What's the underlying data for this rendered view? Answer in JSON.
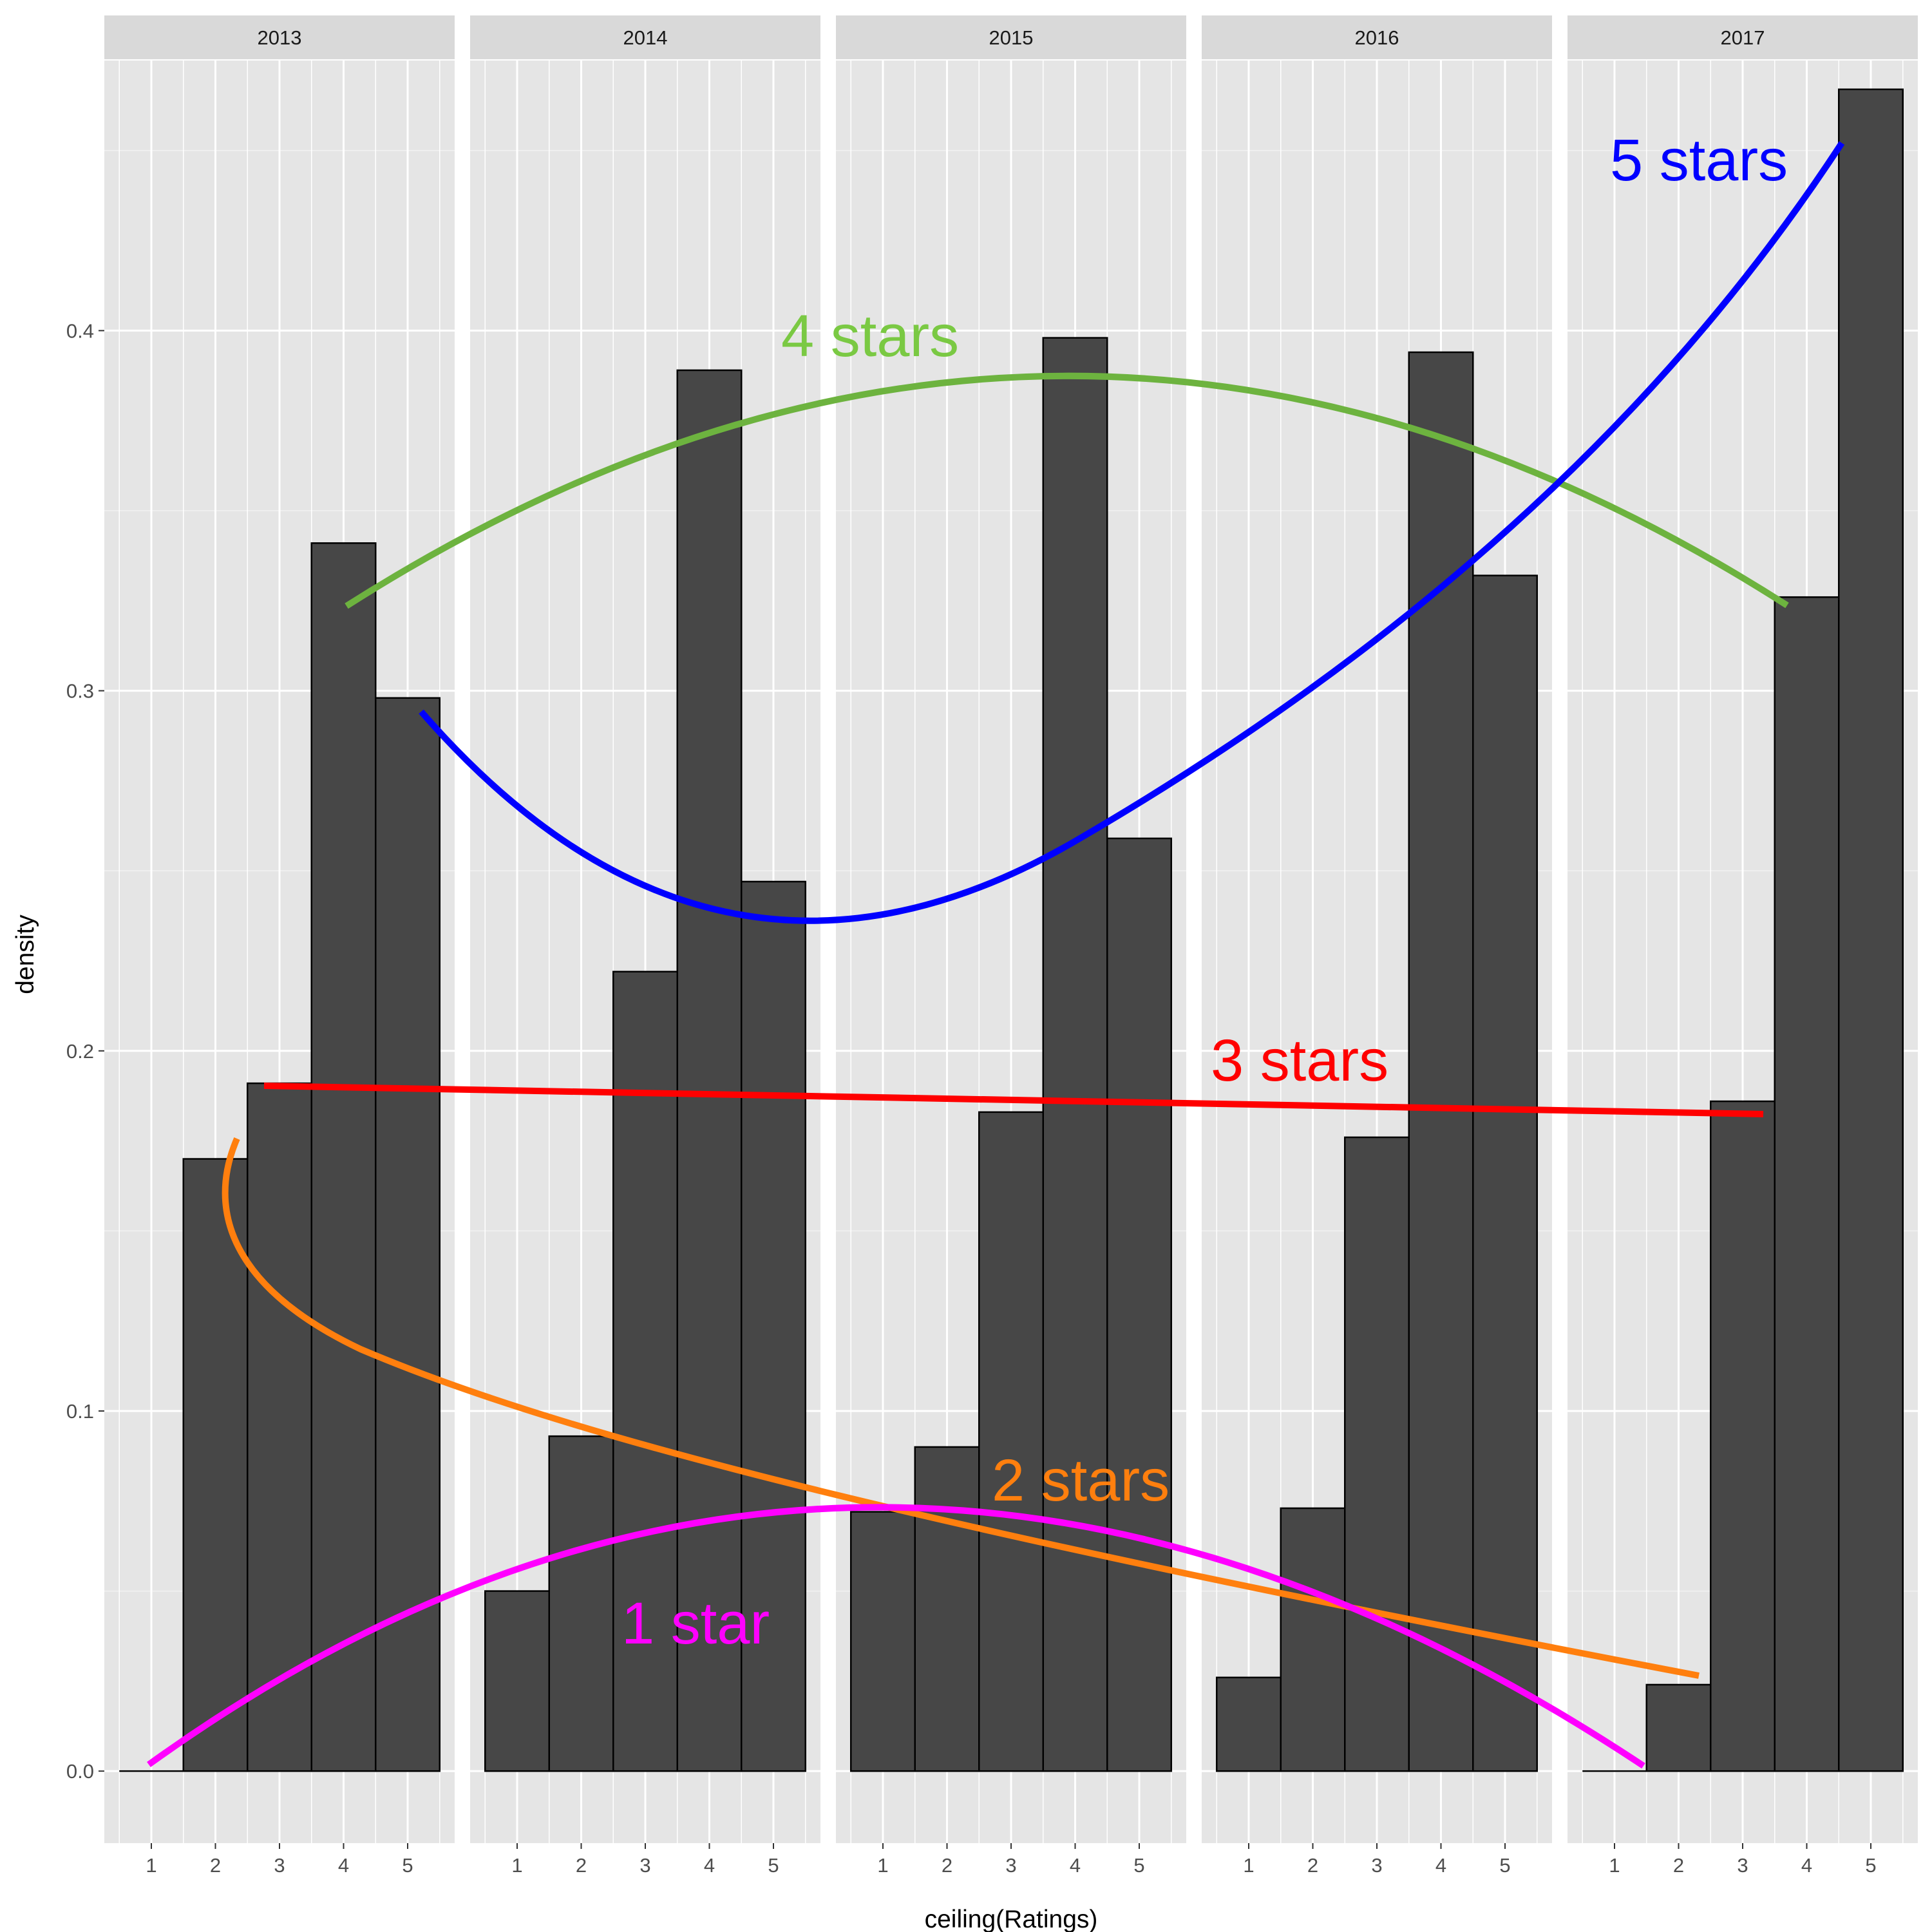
{
  "chart_data": {
    "type": "bar",
    "facet_by": "year",
    "xlabel": "ceiling(Ratings)",
    "ylabel": "density",
    "ylim": [
      -0.02,
      0.475
    ],
    "y_ticks": [
      "0.0",
      "0.1",
      "0.2",
      "0.3",
      "0.4"
    ],
    "x_ticks": [
      "1",
      "2",
      "3",
      "4",
      "5"
    ],
    "grid": true,
    "panels": [
      {
        "label": "2013",
        "values": [
          0.0,
          0.17,
          0.191,
          0.341,
          0.298
        ]
      },
      {
        "label": "2014",
        "values": [
          0.05,
          0.093,
          0.222,
          0.389,
          0.247
        ]
      },
      {
        "label": "2015",
        "values": [
          0.072,
          0.09,
          0.183,
          0.398,
          0.259
        ]
      },
      {
        "label": "2016",
        "values": [
          0.026,
          0.073,
          0.176,
          0.394,
          0.332
        ]
      },
      {
        "label": "2017",
        "values": [
          0.0,
          0.024,
          0.186,
          0.326,
          0.467
        ]
      }
    ],
    "annotations": [
      {
        "text": "5 stars",
        "color": "#0000ff"
      },
      {
        "text": "4 stars",
        "color": "#7ac943"
      },
      {
        "text": "3 stars",
        "color": "#ff0000"
      },
      {
        "text": "2 stars",
        "color": "#ff7f0e"
      },
      {
        "text": "1 star",
        "color": "#ff00ff"
      }
    ]
  }
}
